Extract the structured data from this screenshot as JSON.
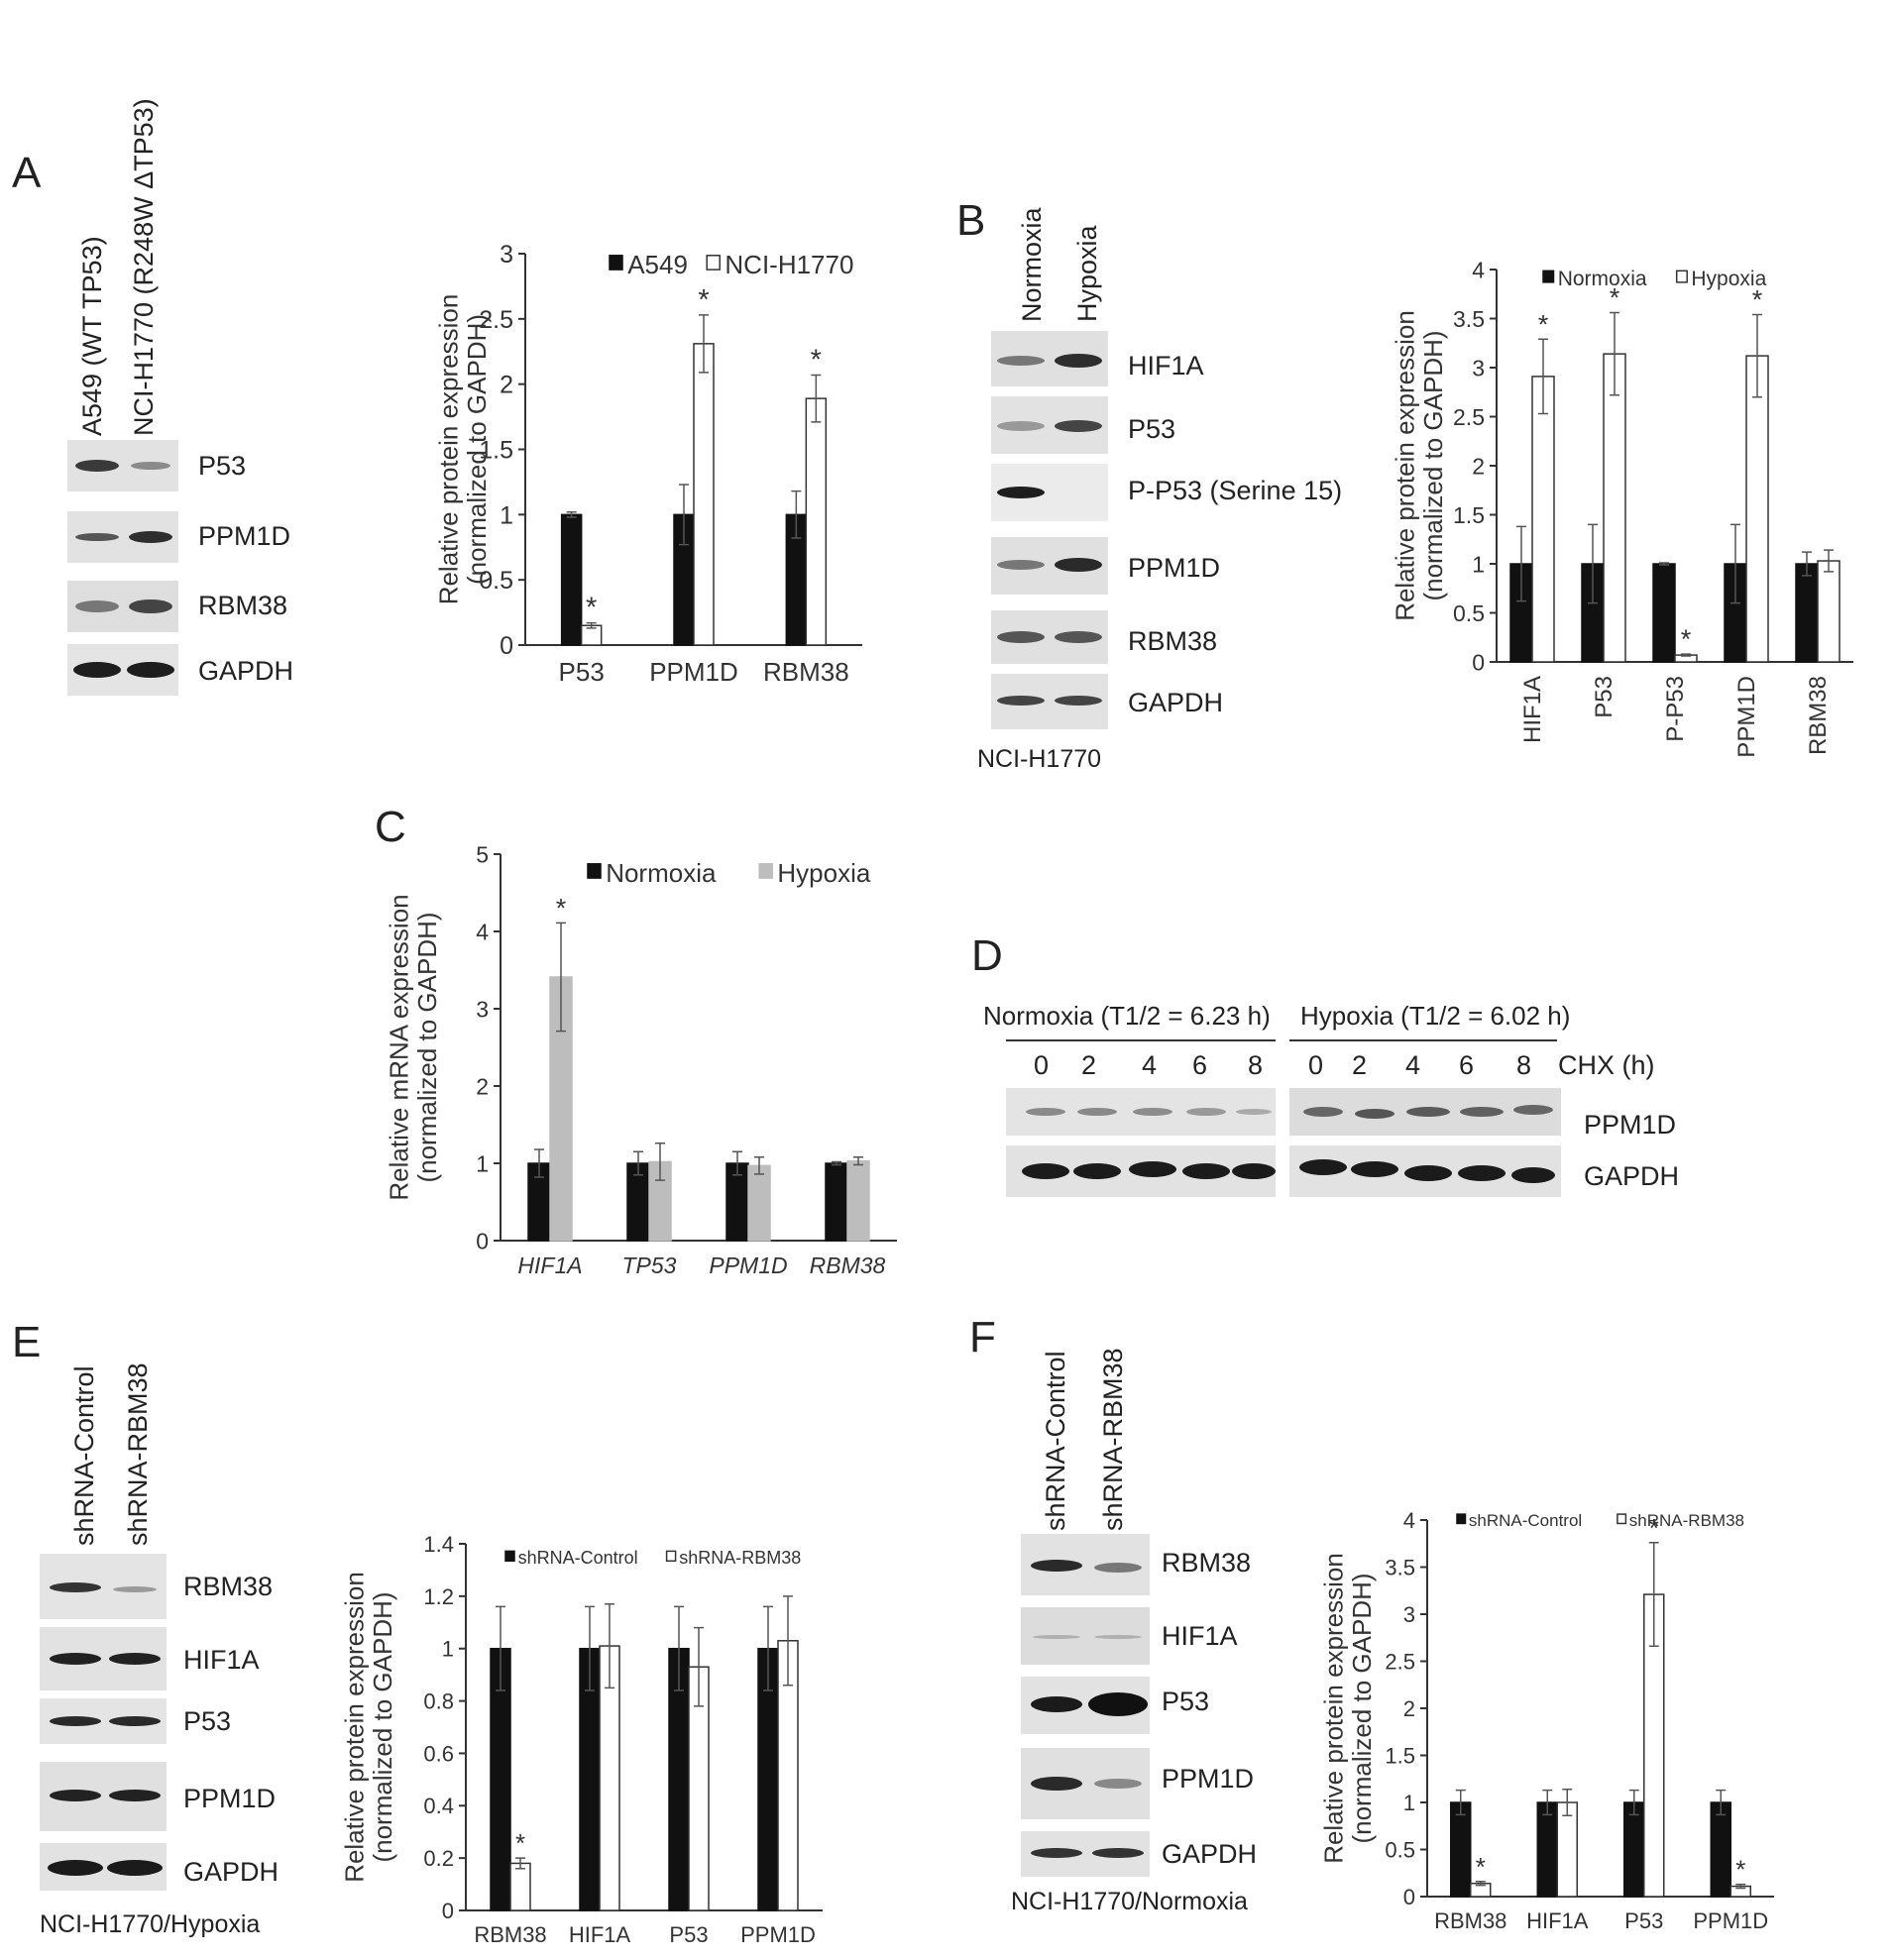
{
  "panels": {
    "A": {
      "letter": "A",
      "lanes": [
        "A549 (WT TP53)",
        "NCI-H1770 (R248W ΔTP53)"
      ],
      "blots": [
        "P53",
        "PPM1D",
        "RBM38",
        "GAPDH"
      ]
    },
    "B": {
      "letter": "B",
      "lanes": [
        "Normoxia",
        "Hypoxia"
      ],
      "blots": [
        "HIF1A",
        "P53",
        "P-P53 (Serine 15)",
        "PPM1D",
        "RBM38",
        "GAPDH"
      ],
      "cell_line": "NCI-H1770"
    },
    "C": {
      "letter": "C"
    },
    "D": {
      "letter": "D",
      "normoxia_header": "Normoxia (T1/2 = 6.23 h)",
      "hypoxia_header": "Hypoxia (T1/2 = 6.02 h)",
      "timepoints": [
        "0",
        "2",
        "4",
        "6",
        "8"
      ],
      "chx_label": "CHX (h)",
      "blots": [
        "PPM1D",
        "GAPDH"
      ]
    },
    "E": {
      "letter": "E",
      "lanes": [
        "shRNA-Control",
        "shRNA-RBM38"
      ],
      "blots": [
        "RBM38",
        "HIF1A",
        "P53",
        "PPM1D",
        "GAPDH"
      ],
      "cell_line": "NCI-H1770/Hypoxia"
    },
    "F": {
      "letter": "F",
      "lanes": [
        "shRNA-Control",
        "shRNA-RBM38"
      ],
      "blots": [
        "RBM38",
        "HIF1A",
        "P53",
        "PPM1D",
        "GAPDH"
      ],
      "cell_line": "NCI-H1770/Normoxia"
    }
  },
  "colors": {
    "black_bar": "#111111",
    "white_bar": "#ffffff",
    "grey_bar": "#bdbdbd",
    "axis": "#333333"
  },
  "chart_data": [
    {
      "panel": "A",
      "type": "bar",
      "ylabel": "Relative protein expression (normalized to GAPDH)",
      "categories": [
        "P53",
        "PPM1D",
        "RBM38"
      ],
      "series": [
        {
          "name": "A549",
          "values": [
            1.0,
            1.0,
            1.0
          ],
          "errors": [
            0.02,
            0.23,
            0.18
          ]
        },
        {
          "name": "NCI-H1770",
          "values": [
            0.15,
            2.31,
            1.89
          ],
          "errors": [
            0.02,
            0.22,
            0.18
          ]
        }
      ],
      "significant": [
        [
          false,
          false,
          false
        ],
        [
          true,
          true,
          true
        ]
      ],
      "ylim": [
        0,
        3
      ],
      "yticks": [
        "0",
        "0.5",
        "1",
        "1.5",
        "2",
        "2.5",
        "3"
      ],
      "legend": "top"
    },
    {
      "panel": "B",
      "type": "bar",
      "ylabel": "Relative protein expression (normalized to GAPDH)",
      "categories": [
        "HIF1A",
        "P53",
        "P-P53",
        "PPM1D",
        "RBM38"
      ],
      "series": [
        {
          "name": "Normoxia",
          "values": [
            1.0,
            1.0,
            1.0,
            1.0,
            1.0
          ],
          "errors": [
            0.38,
            0.4,
            0.01,
            0.4,
            0.12
          ]
        },
        {
          "name": "Hypoxia",
          "values": [
            2.91,
            3.14,
            0.07,
            3.12,
            1.03
          ],
          "errors": [
            0.38,
            0.42,
            0.01,
            0.42,
            0.11
          ]
        }
      ],
      "significant": [
        [
          false,
          false,
          false,
          false,
          false
        ],
        [
          true,
          true,
          true,
          true,
          false
        ]
      ],
      "ylim": [
        0,
        4
      ],
      "yticks": [
        "0",
        "0.5",
        "1",
        "1.5",
        "2",
        "2.5",
        "3",
        "3.5",
        "4"
      ],
      "legend": "top"
    },
    {
      "panel": "C",
      "type": "bar",
      "ylabel": "Relative mRNA expression (normalized to GAPDH)",
      "categories": [
        "HIF1A",
        "TP53",
        "PPM1D",
        "RBM38"
      ],
      "series": [
        {
          "name": "Normoxia",
          "values": [
            1.0,
            1.0,
            1.0,
            1.0
          ],
          "errors": [
            0.18,
            0.15,
            0.15,
            0.02
          ]
        },
        {
          "name": "Hypoxia",
          "values": [
            3.41,
            1.02,
            0.97,
            1.03
          ],
          "errors": [
            0.7,
            0.24,
            0.11,
            0.05
          ]
        }
      ],
      "significant": [
        [
          false,
          false,
          false,
          false
        ],
        [
          true,
          false,
          false,
          false
        ]
      ],
      "ylim": [
        0,
        5
      ],
      "yticks": [
        "0",
        "1",
        "2",
        "3",
        "4",
        "5"
      ],
      "legend": "top"
    },
    {
      "panel": "E",
      "type": "bar",
      "ylabel": "Relative protein expression (normalized to GAPDH)",
      "categories": [
        "RBM38",
        "HIF1A",
        "P53",
        "PPM1D"
      ],
      "series": [
        {
          "name": "shRNA-Control",
          "values": [
            1.0,
            1.0,
            1.0,
            1.0
          ],
          "errors": [
            0.16,
            0.16,
            0.16,
            0.16
          ]
        },
        {
          "name": "shRNA-RBM38",
          "values": [
            0.18,
            1.01,
            0.93,
            1.03
          ],
          "errors": [
            0.02,
            0.16,
            0.15,
            0.17
          ]
        }
      ],
      "significant": [
        [
          false,
          false,
          false,
          false
        ],
        [
          true,
          false,
          false,
          false
        ]
      ],
      "ylim": [
        0,
        1.4
      ],
      "yticks": [
        "0",
        "0.2",
        "0.4",
        "0.6",
        "0.8",
        "1",
        "1.2",
        "1.4"
      ],
      "legend": "top"
    },
    {
      "panel": "F",
      "type": "bar",
      "ylabel": "Relative protein expression (normalized to GAPDH)",
      "categories": [
        "RBM38",
        "HIF1A",
        "P53",
        "PPM1D"
      ],
      "series": [
        {
          "name": "shRNA-Control",
          "values": [
            1.0,
            1.0,
            1.0,
            1.0
          ],
          "errors": [
            0.13,
            0.13,
            0.13,
            0.13
          ]
        },
        {
          "name": "shRNA-RBM38",
          "values": [
            0.14,
            1.0,
            3.21,
            0.11
          ],
          "errors": [
            0.02,
            0.14,
            0.55,
            0.02
          ]
        }
      ],
      "significant": [
        [
          false,
          false,
          false,
          false
        ],
        [
          true,
          false,
          true,
          true
        ]
      ],
      "ylim": [
        0,
        4
      ],
      "yticks": [
        "0",
        "0.5",
        "1",
        "1.5",
        "2",
        "2.5",
        "3",
        "3.5",
        "4"
      ],
      "legend": "top"
    }
  ]
}
